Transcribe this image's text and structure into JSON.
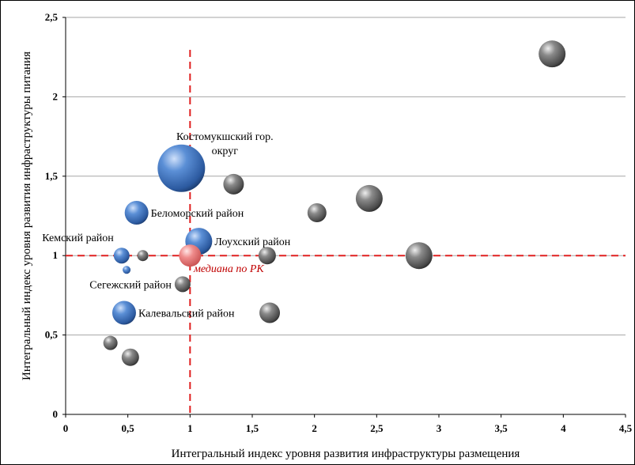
{
  "chart_data": {
    "type": "scatter",
    "xlabel": "Интегральный индекс уровня развития инфраструктуры размещения",
    "ylabel": "Интегральный индекс уровня развития инфраструктуры питания",
    "xlim": [
      0,
      4.5
    ],
    "ylim": [
      0,
      2.5
    ],
    "x_ticks": [
      "0",
      "0,5",
      "1",
      "1,5",
      "2",
      "2,5",
      "3",
      "3,5",
      "4",
      "4,5"
    ],
    "y_ticks": [
      "0",
      "0,5",
      "1",
      "1,5",
      "2",
      "2,5"
    ],
    "grid": "horizontal",
    "median": {
      "x": 1,
      "y": 1,
      "label": "медиана по РК"
    },
    "colors": {
      "blue": "#3a6db5",
      "gray": "#6e6e6e",
      "median": "#e87878",
      "median_line": "#e02020"
    },
    "points": [
      {
        "x": 0.93,
        "y": 1.55,
        "size": 30,
        "color": "blue",
        "label": "Костомукшский гор. округ"
      },
      {
        "x": 0.57,
        "y": 1.27,
        "size": 15,
        "color": "blue",
        "label": "Беломорский район"
      },
      {
        "x": 1.07,
        "y": 1.09,
        "size": 17,
        "color": "blue",
        "label": "Лоухский район"
      },
      {
        "x": 0.45,
        "y": 1.0,
        "size": 10,
        "color": "blue",
        "label": "Кемский район"
      },
      {
        "x": 0.49,
        "y": 0.91,
        "size": 5,
        "color": "blue",
        "label": ""
      },
      {
        "x": 0.47,
        "y": 0.64,
        "size": 15,
        "color": "blue",
        "label": "Калевальский район"
      },
      {
        "x": 0.62,
        "y": 1.0,
        "size": 7,
        "color": "gray",
        "label": ""
      },
      {
        "x": 0.94,
        "y": 0.82,
        "size": 10,
        "color": "gray",
        "label": "Сегежский район"
      },
      {
        "x": 1.0,
        "y": 1.0,
        "size": 14,
        "color": "median",
        "label": ""
      },
      {
        "x": 1.35,
        "y": 1.45,
        "size": 13,
        "color": "gray",
        "label": ""
      },
      {
        "x": 1.62,
        "y": 1.0,
        "size": 11,
        "color": "gray",
        "label": ""
      },
      {
        "x": 1.64,
        "y": 0.64,
        "size": 13,
        "color": "gray",
        "label": ""
      },
      {
        "x": 2.02,
        "y": 1.27,
        "size": 12,
        "color": "gray",
        "label": ""
      },
      {
        "x": 2.44,
        "y": 1.36,
        "size": 17,
        "color": "gray",
        "label": ""
      },
      {
        "x": 2.84,
        "y": 1.0,
        "size": 17,
        "color": "gray",
        "label": ""
      },
      {
        "x": 3.91,
        "y": 2.27,
        "size": 17,
        "color": "gray",
        "label": ""
      },
      {
        "x": 0.36,
        "y": 0.45,
        "size": 9,
        "color": "gray",
        "label": ""
      },
      {
        "x": 0.52,
        "y": 0.36,
        "size": 11,
        "color": "gray",
        "label": ""
      }
    ]
  }
}
